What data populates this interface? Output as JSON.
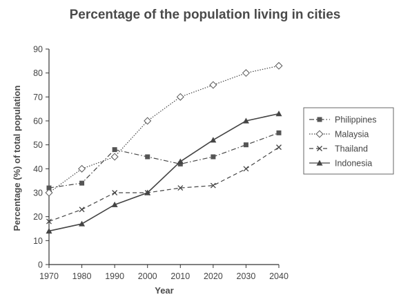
{
  "chart_data": {
    "type": "line",
    "title": "Percentage of the population living in cities",
    "xlabel": "Year",
    "ylabel": "Percentage (%) of total population",
    "x": [
      1970,
      1980,
      1990,
      2000,
      2010,
      2020,
      2030,
      2040
    ],
    "ylim": [
      0,
      90
    ],
    "yticks": [
      0,
      10,
      20,
      30,
      40,
      50,
      60,
      70,
      80,
      90
    ],
    "grid": false,
    "legend_position": "right",
    "series": [
      {
        "name": "Philippines",
        "marker": "square",
        "dash": "dash-dot",
        "values": [
          32,
          34,
          48,
          45,
          42,
          45,
          50,
          55
        ]
      },
      {
        "name": "Malaysia",
        "marker": "diamond-open",
        "dash": "dotted",
        "values": [
          30,
          40,
          45,
          60,
          70,
          75,
          80,
          83
        ]
      },
      {
        "name": "Thailand",
        "marker": "x",
        "dash": "dashed",
        "values": [
          18,
          23,
          30,
          30,
          32,
          33,
          40,
          49
        ]
      },
      {
        "name": "Indonesia",
        "marker": "triangle",
        "dash": "solid",
        "values": [
          14,
          17,
          25,
          30,
          43,
          52,
          60,
          63
        ]
      }
    ]
  }
}
